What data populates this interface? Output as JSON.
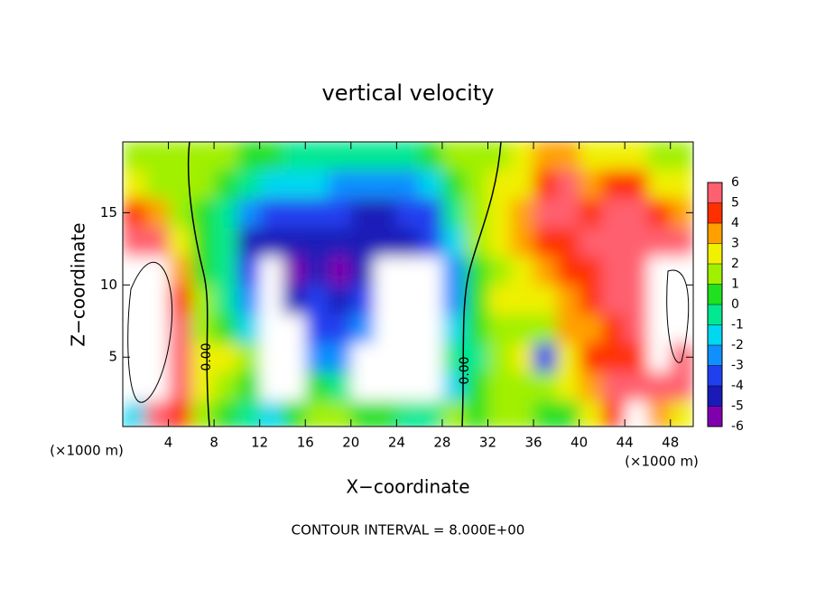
{
  "chart_data": {
    "type": "heatmap",
    "title": "vertical velocity",
    "x_label": "X−coordinate",
    "y_label": "Z−coordinate",
    "x_unit": "(×1000 m)",
    "y_unit": "(×1000 m)",
    "footer": "CONTOUR INTERVAL = 8.000E+00",
    "contour_labels": [
      "0.00",
      "0.00"
    ],
    "xlim": [
      0,
      50
    ],
    "ylim": [
      0.2,
      19.9
    ],
    "xticks": [
      4,
      8,
      12,
      16,
      20,
      24,
      28,
      32,
      36,
      40,
      44,
      48
    ],
    "yticks": [
      5,
      10,
      15
    ],
    "x": [
      1,
      3,
      5,
      7,
      9,
      11,
      13,
      15,
      17,
      19,
      21,
      23,
      25,
      27,
      29,
      31,
      33,
      35,
      37,
      39,
      41,
      43,
      45,
      47,
      49
    ],
    "y": [
      1,
      3,
      5,
      7,
      9,
      11,
      13,
      15,
      17,
      19
    ],
    "z": [
      [
        -2,
        5,
        4,
        1,
        0,
        -1,
        -2,
        0,
        1,
        1,
        0,
        0,
        -1,
        -1,
        1,
        0,
        1,
        1,
        0,
        0,
        2,
        4,
        8,
        3,
        2
      ],
      [
        8,
        8,
        5,
        2,
        1,
        0,
        8,
        8,
        0,
        -1,
        8,
        8,
        8,
        8,
        -2,
        0,
        1,
        1,
        1,
        2,
        3,
        5,
        5,
        6,
        5
      ],
      [
        8,
        8,
        5,
        2,
        2,
        1,
        8,
        8,
        -3,
        -3,
        8,
        8,
        8,
        8,
        -1,
        -1,
        1,
        2,
        -4,
        2,
        4,
        4,
        4,
        8,
        5
      ],
      [
        8,
        8,
        5,
        1,
        0,
        -2,
        8,
        8,
        -4,
        -4,
        -3,
        8,
        8,
        8,
        -2,
        0,
        1,
        1,
        1,
        3,
        3,
        4,
        5,
        8,
        8
      ],
      [
        8,
        8,
        4,
        1,
        -1,
        -3,
        8,
        -5,
        -4,
        -5,
        -4,
        8,
        8,
        8,
        -3,
        0,
        2,
        2,
        2,
        3,
        4,
        5,
        5,
        8,
        8
      ],
      [
        8,
        7,
        3,
        0,
        -1,
        -4,
        8,
        -6,
        -5,
        -6,
        -5,
        8,
        8,
        8,
        -3,
        0,
        1,
        2,
        3,
        4,
        4,
        5,
        6,
        8,
        8
      ],
      [
        5,
        5,
        2,
        0,
        -1,
        -5,
        -5,
        -5,
        -5,
        -5,
        -5,
        -5,
        -5,
        -4,
        -2,
        1,
        2,
        3,
        4,
        4,
        5,
        6,
        6,
        5,
        5
      ],
      [
        4,
        3,
        1,
        0,
        -1,
        -3,
        -4,
        -4,
        -4,
        -4,
        -5,
        -5,
        -4,
        -4,
        -1,
        1,
        2,
        3,
        5,
        5,
        4,
        5,
        6,
        4,
        3
      ],
      [
        2,
        1,
        1,
        1,
        0,
        -1,
        -2,
        -2,
        -2,
        -3,
        -3,
        -3,
        -3,
        -2,
        0,
        1,
        2,
        2,
        4,
        5,
        3,
        4,
        4,
        2,
        2
      ],
      [
        1,
        1,
        1,
        1,
        1,
        0,
        0,
        -1,
        -1,
        -1,
        -1,
        -1,
        -1,
        0,
        1,
        1,
        1,
        2,
        3,
        3,
        2,
        2,
        2,
        1,
        1
      ]
    ],
    "colorbar_ticks": [
      -6,
      -5,
      -4,
      -3,
      -2,
      -1,
      0,
      1,
      2,
      3,
      4,
      5,
      6
    ],
    "colors": [
      "#8000b0",
      "#1a1ab8",
      "#2040f0",
      "#1090ff",
      "#00d8f0",
      "#00e890",
      "#20e020",
      "#a0f000",
      "#f0f000",
      "#ffa000",
      "#ff3000",
      "#ff6070"
    ],
    "over_color": "#ffffff"
  }
}
